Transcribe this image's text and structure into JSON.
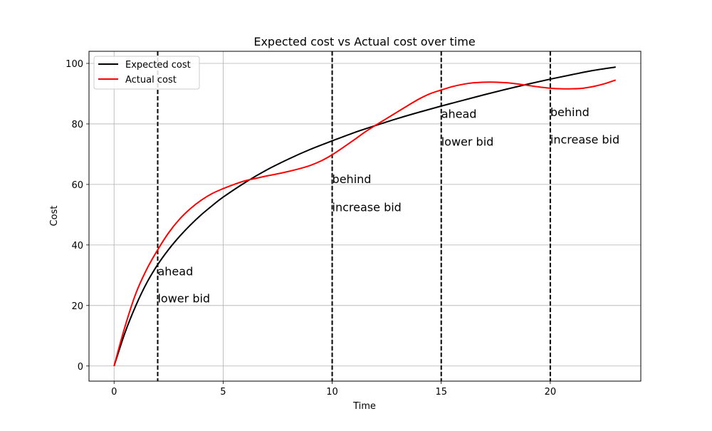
{
  "chart_data": {
    "type": "line",
    "title": "Expected cost vs Actual cost over time",
    "xlabel": "Time",
    "ylabel": "Cost",
    "xlim": [
      -1.15,
      24.15
    ],
    "ylim": [
      -5,
      104
    ],
    "xticks": [
      0,
      5,
      10,
      15,
      20
    ],
    "yticks": [
      0,
      20,
      40,
      60,
      80,
      100
    ],
    "grid": true,
    "legend_position": "top-left",
    "series": [
      {
        "name": "Expected cost",
        "color": "#000000",
        "x": [
          0,
          0.5,
          1,
          1.5,
          2,
          2.5,
          3,
          3.5,
          4,
          4.5,
          5,
          6,
          7,
          8,
          9,
          10,
          11,
          12,
          13,
          14,
          15,
          16,
          17,
          18,
          19,
          20,
          21,
          22,
          23
        ],
        "y": [
          0,
          11,
          20,
          27.5,
          33.5,
          38.5,
          42.8,
          46.6,
          50,
          53,
          55.8,
          60.6,
          64.8,
          68.4,
          71.6,
          74.4,
          77.1,
          79.5,
          81.8,
          83.9,
          85.9,
          87.8,
          89.7,
          91.5,
          93.2,
          94.8,
          96.3,
          97.7,
          98.8
        ]
      },
      {
        "name": "Actual cost",
        "color": "#ff0000",
        "x": [
          0,
          0.5,
          1,
          1.5,
          2,
          2.5,
          3,
          3.5,
          4,
          4.5,
          5,
          5.5,
          6,
          6.5,
          7,
          7.5,
          8,
          8.5,
          9,
          9.5,
          10,
          10.5,
          11,
          11.5,
          12,
          12.5,
          13,
          13.5,
          14,
          14.5,
          15,
          15.5,
          16,
          16.5,
          17,
          17.5,
          18,
          18.5,
          19,
          19.5,
          20,
          20.5,
          21,
          21.5,
          22,
          22.5,
          23
        ],
        "y": [
          0,
          13,
          24,
          32,
          38.4,
          44,
          48.5,
          52,
          54.8,
          57,
          58.6,
          60,
          61.2,
          62,
          62.8,
          63.5,
          64.3,
          65.2,
          66.3,
          67.8,
          69.8,
          72.2,
          74.7,
          77.3,
          79.6,
          81.8,
          84,
          86.2,
          88.3,
          90,
          91.2,
          92.3,
          93.1,
          93.6,
          93.8,
          93.8,
          93.6,
          93.2,
          92.7,
          92.2,
          91.8,
          91.6,
          91.6,
          91.8,
          92.4,
          93.3,
          94.5
        ]
      }
    ],
    "vlines": [
      2,
      10,
      15,
      20
    ],
    "annotations": [
      {
        "x": 2,
        "y": 30,
        "text": "ahead"
      },
      {
        "x": 2,
        "y": 21,
        "text": "lower bid"
      },
      {
        "x": 10,
        "y": 60.5,
        "text": "behind"
      },
      {
        "x": 10,
        "y": 51.2,
        "text": "increase bid"
      },
      {
        "x": 15,
        "y": 82,
        "text": "ahead"
      },
      {
        "x": 15,
        "y": 72.8,
        "text": "lower bid"
      },
      {
        "x": 20,
        "y": 82.6,
        "text": "behind"
      },
      {
        "x": 20,
        "y": 73.5,
        "text": "increase bid"
      }
    ]
  }
}
